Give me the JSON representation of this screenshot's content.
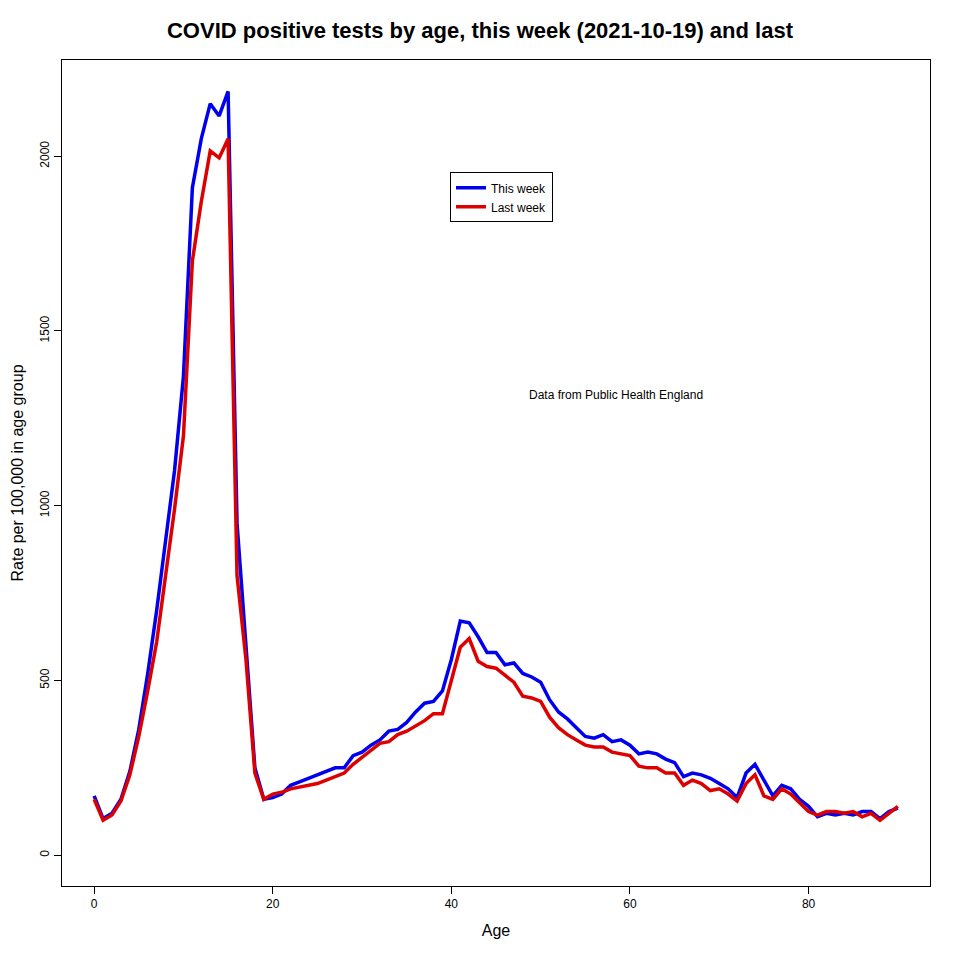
{
  "chart_data": {
    "type": "line",
    "title": "COVID positive tests by age, this week (2021-10-19) and last",
    "x_label": "Age",
    "y_label": "Rate per 100,000 in age group",
    "annotations": [
      "Data from Public Health England"
    ],
    "x": [
      0,
      1,
      2,
      3,
      4,
      5,
      6,
      7,
      8,
      9,
      10,
      11,
      12,
      13,
      14,
      15,
      16,
      17,
      18,
      19,
      20,
      21,
      22,
      23,
      24,
      25,
      26,
      27,
      28,
      29,
      30,
      31,
      32,
      33,
      34,
      35,
      36,
      37,
      38,
      39,
      40,
      41,
      42,
      43,
      44,
      45,
      46,
      47,
      48,
      49,
      50,
      51,
      52,
      53,
      54,
      55,
      56,
      57,
      58,
      59,
      60,
      61,
      62,
      63,
      64,
      65,
      66,
      67,
      68,
      69,
      70,
      71,
      72,
      73,
      74,
      75,
      76,
      77,
      78,
      79,
      80,
      81,
      82,
      83,
      84,
      85,
      86,
      87,
      88,
      89,
      90
    ],
    "series": [
      {
        "name": "This week",
        "color": "#0000ee",
        "values": [
          170,
          105,
          120,
          160,
          240,
          360,
          520,
          700,
          900,
          1100,
          1370,
          1910,
          2050,
          2150,
          2115,
          2185,
          950,
          600,
          250,
          160,
          165,
          175,
          200,
          210,
          220,
          230,
          240,
          250,
          250,
          285,
          295,
          315,
          330,
          355,
          360,
          380,
          410,
          435,
          440,
          470,
          560,
          670,
          665,
          625,
          580,
          580,
          545,
          550,
          520,
          510,
          495,
          445,
          410,
          390,
          365,
          340,
          335,
          345,
          325,
          330,
          315,
          290,
          295,
          290,
          275,
          265,
          225,
          235,
          230,
          220,
          205,
          190,
          165,
          235,
          260,
          215,
          170,
          200,
          190,
          160,
          140,
          110,
          120,
          115,
          120,
          115,
          125,
          125,
          105,
          125,
          135
        ]
      },
      {
        "name": "Last week",
        "color": "#dd0000",
        "values": [
          160,
          100,
          115,
          155,
          230,
          340,
          470,
          610,
          800,
          990,
          1200,
          1700,
          1870,
          2015,
          1995,
          2050,
          800,
          560,
          235,
          160,
          175,
          180,
          190,
          195,
          200,
          205,
          215,
          225,
          235,
          260,
          280,
          300,
          320,
          325,
          345,
          355,
          370,
          385,
          405,
          405,
          500,
          595,
          620,
          555,
          540,
          535,
          515,
          495,
          455,
          450,
          440,
          395,
          365,
          345,
          330,
          315,
          310,
          310,
          295,
          290,
          285,
          255,
          250,
          250,
          235,
          235,
          200,
          215,
          205,
          185,
          190,
          175,
          155,
          205,
          230,
          170,
          160,
          190,
          175,
          150,
          125,
          115,
          125,
          125,
          120,
          125,
          110,
          120,
          100,
          120,
          140
        ]
      }
    ],
    "xlim": [
      -3.6,
      93.6
    ],
    "ylim": [
      -88,
      2275
    ],
    "xticks": [
      0,
      20,
      40,
      60,
      80
    ],
    "yticks": [
      0,
      500,
      1000,
      1500,
      2000
    ],
    "grid": false,
    "legend": "top"
  }
}
